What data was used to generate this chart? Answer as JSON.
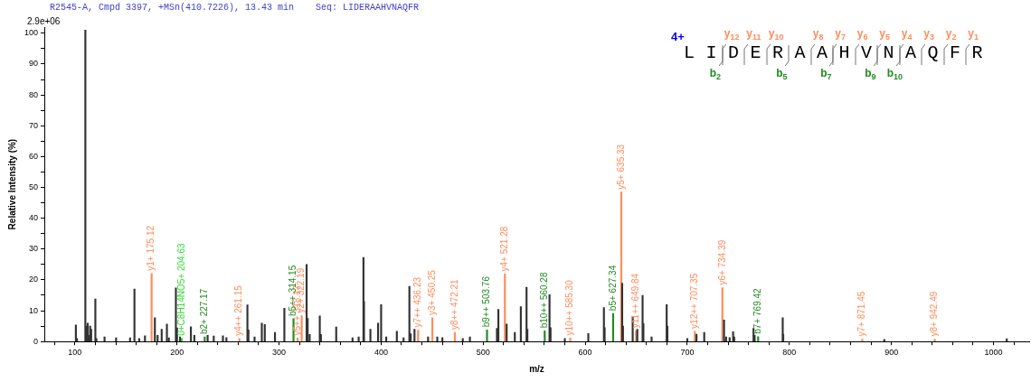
{
  "chart_data": {
    "type": "bar",
    "title": "R2545-A, Cmpd 3397, +MSn(410.7226), 13.43 min    Seq: LIDERAAHVNAQFR",
    "xlabel": "m/z",
    "ylabel": "Relative Intensity (%)",
    "annotations": [
      "2.9e+06",
      "4+",
      "LIDERAAHVNAQFR",
      "y$_{12}$",
      "y$_{11}$",
      "y$_{10}$",
      "y$_{8}$",
      "y$_{7}$",
      "y$_{6}$",
      "y$_{5}$",
      "y$_{4}$",
      "y$_{3}$",
      "y$_{2}$",
      "y$_{1}$",
      "b$_{2}$",
      "b$_{5}$",
      "b$_{7}$",
      "b$_{9}$",
      "b$_{10}$",
      {
        "text": "0+C8H14NO5+ 204.63",
        "x": 204.63,
        "y": 1
      }
    ],
    "series": [
      {
        "color": "#333333",
        "x": [
          100.9,
          102,
          110.2,
          111.5,
          112.5,
          114,
          114.9,
          115.9,
          120,
          121,
          129,
          140.3,
          154,
          158.3,
          163,
          168.6,
          178.3,
          181,
          185,
          190.1,
          192,
          198.9,
          200,
          203,
          213.6,
          217,
          230,
          236,
          245,
          248.4,
          269,
          270,
          276,
          283.1,
          286,
          296,
          305.2,
          327,
          328,
          330,
          339.9,
          341,
          356,
          372,
          378,
          382.7,
          383.2,
          389.5,
          397,
          400,
          405,
          415.4,
          422,
          427.7,
          429,
          432.7,
          446,
          455,
          460,
          480,
          487,
          513.5,
          514.9,
          523,
          531,
          536.9,
          542.5,
          543.3,
          565,
          566,
          580,
          603,
          618.3,
          619,
          636.2,
          637,
          646.5,
          651,
          656.2,
          657,
          665,
          679.8,
          680.5,
          700,
          709,
          716.6,
          736,
          738,
          741.5,
          744.9,
          746,
          764.9,
          766,
          793.5,
          794,
          893,
          1013
        ],
        "values": [
          5.4,
          1,
          101,
          5,
          6,
          2,
          5,
          4,
          13.8,
          1,
          1.5,
          1.2,
          1.2,
          17,
          1,
          1.9,
          7.7,
          2,
          4,
          5.7,
          1.2,
          17.4,
          4.4,
          1.5,
          4.8,
          2,
          2,
          1.8,
          1.9,
          1.3,
          11.9,
          3.8,
          1.5,
          6,
          5.5,
          3,
          10.8,
          25,
          7.5,
          2.3,
          8.3,
          2.3,
          4.7,
          1.2,
          1.5,
          27.3,
          13,
          4,
          6,
          12,
          1.5,
          3.3,
          1.2,
          17.9,
          2.5,
          4,
          1.5,
          1.5,
          1.3,
          1,
          1.5,
          4.3,
          10.4,
          5.7,
          3,
          11.3,
          17.6,
          4,
          15.2,
          4.5,
          1,
          2.6,
          11,
          4.5,
          18.9,
          5,
          8.1,
          4,
          15,
          5.8,
          1.5,
          12,
          5,
          1,
          2.4,
          3,
          7,
          1.5,
          1.3,
          3.2,
          1.5,
          4.3,
          2,
          7.7,
          2.4,
          0.7,
          0.9
        ]
      },
      {
        "color": "#ff8c5a",
        "x": [
          175.12,
          261.15,
          318.17,
          322.19,
          436.23,
          450.25,
          472.21,
          521.28,
          585.3,
          635.33,
          649.84,
          707.35,
          734.39,
          871.45,
          942.49
        ],
        "values": [
          22.1,
          1,
          1.1,
          8.4,
          3.7,
          7.7,
          3,
          21.9,
          1.1,
          48.5,
          3.5,
          3.3,
          17.5,
          0.8,
          0.8
        ],
        "value_labels": [
          "y1+ 175.12",
          "y4++ 261.15",
          "y5++ 318.17",
          "y2+ 322.19",
          "y7++ 436.23",
          "y3+ 450.25",
          "y8++ 472.21",
          "y4+ 521.28",
          "y10++ 585.30",
          "y5+ 635.33",
          "y11++ 649.84",
          "y12++ 707.35",
          "y6+ 734.39",
          "y7+ 871.45",
          "y8+ 942.49"
        ]
      },
      {
        "color": "#228b22",
        "x": [
          227.17,
          314.15,
          503.76,
          560.28,
          627.34,
          769.42
        ],
        "values": [
          1.5,
          7.4,
          3.8,
          3.5,
          9.1,
          1.6
        ],
        "value_labels": [
          "b2+ 227.17",
          "b5++ 314.15",
          "b9++ 503.76",
          "b10++ 560.28",
          "b5+ 627.34",
          "b7+ 769.42"
        ]
      },
      {
        "color": "#33dd33",
        "x": [
          204.63
        ],
        "values": [
          1
        ]
      }
    ],
    "xlim": [
      70,
      1035
    ],
    "xticks": [
      {
        "value": 80,
        "label": null
      },
      100,
      {
        "value": 120,
        "label": null
      },
      {
        "value": 140,
        "label": null
      },
      {
        "value": 160,
        "label": null
      },
      {
        "value": 180,
        "label": null
      },
      200,
      {
        "value": 220,
        "label": null
      },
      {
        "value": 240,
        "label": null
      },
      {
        "value": 260,
        "label": null
      },
      {
        "value": 280,
        "label": null
      },
      300,
      {
        "value": 320,
        "label": null
      },
      {
        "value": 340,
        "label": null
      },
      {
        "value": 360,
        "label": null
      },
      {
        "value": 380,
        "label": null
      },
      400,
      {
        "value": 420,
        "label": null
      },
      {
        "value": 440,
        "label": null
      },
      {
        "value": 460,
        "label": null
      },
      {
        "value": 480,
        "label": null
      },
      500,
      {
        "value": 520,
        "label": null
      },
      {
        "value": 540,
        "label": null
      },
      {
        "value": 560,
        "label": null
      },
      {
        "value": 580,
        "label": null
      },
      600,
      {
        "value": 620,
        "label": null
      },
      {
        "value": 640,
        "label": null
      },
      {
        "value": 660,
        "label": null
      },
      {
        "value": 680,
        "label": null
      },
      700,
      {
        "value": 720,
        "label": null
      },
      {
        "value": 740,
        "label": null
      },
      {
        "value": 760,
        "label": null
      },
      {
        "value": 780,
        "label": null
      },
      800,
      {
        "value": 820,
        "label": null
      },
      {
        "value": 840,
        "label": null
      },
      {
        "value": 860,
        "label": null
      },
      {
        "value": 880,
        "label": null
      },
      900,
      {
        "value": 920,
        "label": null
      },
      {
        "value": 940,
        "label": null
      },
      {
        "value": 960,
        "label": null
      },
      {
        "value": 980,
        "label": null
      },
      1000,
      {
        "value": 1020,
        "label": null
      }
    ],
    "ylim": [
      0,
      102
    ],
    "yticks": [
      0,
      {
        "value": 5,
        "label": null
      },
      10,
      {
        "value": 15,
        "label": null
      },
      20,
      {
        "value": 25,
        "label": null
      },
      30,
      {
        "value": 35,
        "label": null
      },
      40,
      {
        "value": 45,
        "label": null
      },
      50,
      {
        "value": 55,
        "label": null
      },
      60,
      {
        "value": 65,
        "label": null
      },
      70,
      {
        "value": 75,
        "label": null
      },
      80,
      {
        "value": 85,
        "label": null
      },
      90,
      {
        "value": 95,
        "label": null
      },
      100
    ],
    "grid": false,
    "legend": false
  }
}
